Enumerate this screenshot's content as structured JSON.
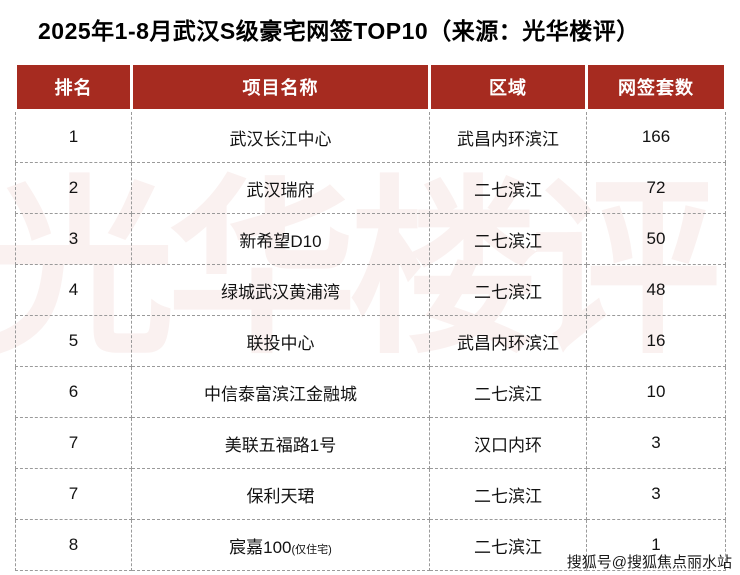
{
  "title": "2025年1-8月武汉S级豪宅网签TOP10（来源：光华楼评）",
  "watermark": "光华楼评",
  "footer": "搜狐号@搜狐焦点丽水站",
  "colors": {
    "header_bg": "#A62B20",
    "header_text": "#FFFFFF",
    "body_text": "#121212",
    "grid_dashed": "#9A9A9A"
  },
  "chart_data": {
    "type": "table",
    "title": "2025年1-8月武汉S级豪宅网签TOP10（来源：光华楼评）",
    "columns": [
      "排名",
      "项目名称",
      "区域",
      "网签套数"
    ],
    "rows": [
      {
        "rank": "1",
        "name": "武汉长江中心",
        "note": "",
        "area": "武昌内环滨江",
        "count": "166"
      },
      {
        "rank": "2",
        "name": "武汉瑞府",
        "note": "",
        "area": "二七滨江",
        "count": "72"
      },
      {
        "rank": "3",
        "name": "新希望D10",
        "note": "",
        "area": "二七滨江",
        "count": "50"
      },
      {
        "rank": "4",
        "name": "绿城武汉黄浦湾",
        "note": "",
        "area": "二七滨江",
        "count": "48"
      },
      {
        "rank": "5",
        "name": "联投中心",
        "note": "",
        "area": "武昌内环滨江",
        "count": "16"
      },
      {
        "rank": "6",
        "name": "中信泰富滨江金融城",
        "note": "",
        "area": "二七滨江",
        "count": "10"
      },
      {
        "rank": "7",
        "name": "美联五福路1号",
        "note": "",
        "area": "汉口内环",
        "count": "3"
      },
      {
        "rank": "7",
        "name": "保利天珺",
        "note": "",
        "area": "二七滨江",
        "count": "3"
      },
      {
        "rank": "8",
        "name": "宸嘉100",
        "note": "(仅住宅)",
        "area": "二七滨江",
        "count": "1"
      }
    ]
  }
}
